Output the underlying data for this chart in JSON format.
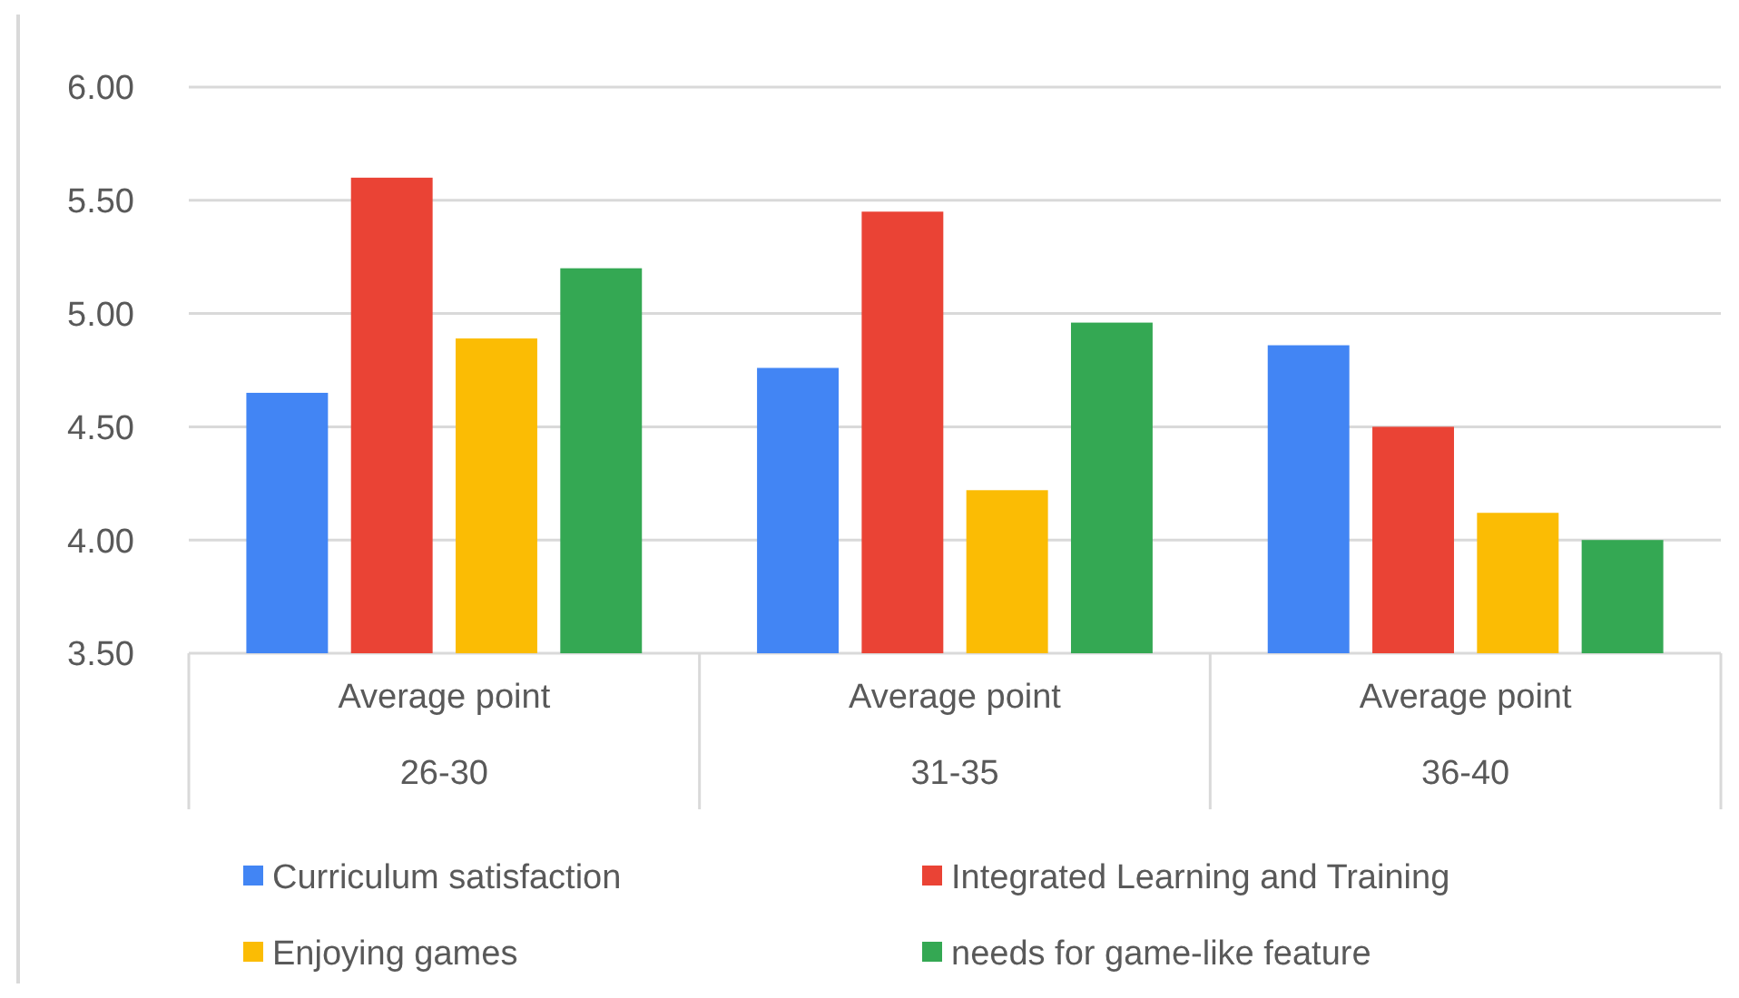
{
  "chart_data": {
    "type": "bar",
    "categories": [
      "Average point\n26-30",
      "Average point\n31-35",
      "Average point\n36-40"
    ],
    "series": [
      {
        "name": "Curriculum satisfaction",
        "color": "#4285f4",
        "values": [
          4.65,
          4.76,
          4.86
        ]
      },
      {
        "name": "Integrated Learning and Training",
        "color": "#ea4335",
        "values": [
          5.6,
          5.45,
          4.5
        ]
      },
      {
        "name": "Enjoying games",
        "color": "#fbbc04",
        "values": [
          4.89,
          4.22,
          4.12
        ]
      },
      {
        "name": "needs for game-like feature",
        "color": "#34a853",
        "values": [
          5.2,
          4.96,
          4.0
        ]
      }
    ],
    "ylim": [
      3.5,
      6
    ],
    "yticks": [
      {
        "value": 3.5,
        "label": "3.50"
      },
      {
        "value": 4,
        "label": "4.00"
      },
      {
        "value": 4.5,
        "label": "4.50"
      },
      {
        "value": 5,
        "label": "5.00"
      },
      {
        "value": 5.5,
        "label": "5.50"
      },
      {
        "value": 6,
        "label": "6.00"
      }
    ],
    "grid": "y",
    "legend": "bottom"
  }
}
